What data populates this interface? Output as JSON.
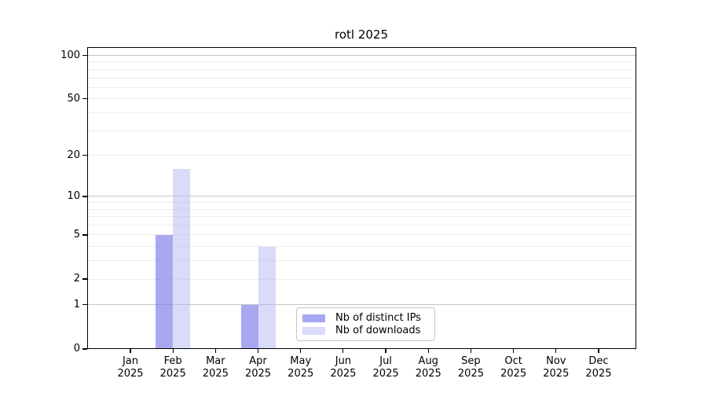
{
  "title": "rotl 2025",
  "chart_data": {
    "type": "bar",
    "title": "rotl 2025",
    "categories": [
      "Jan",
      "Feb",
      "Mar",
      "Apr",
      "May",
      "Jun",
      "Jul",
      "Aug",
      "Sep",
      "Oct",
      "Nov",
      "Dec"
    ],
    "x_year_line": "2025",
    "series": [
      {
        "name": "Nb of distinct IPs",
        "color": "rgba(127,127,233,0.68)",
        "values": [
          0,
          5,
          0,
          1,
          0,
          0,
          0,
          0,
          0,
          0,
          0,
          0
        ]
      },
      {
        "name": "Nb of downloads",
        "color": "rgba(181,181,243,0.5)",
        "values": [
          0,
          16,
          0,
          4,
          0,
          0,
          0,
          0,
          0,
          0,
          0,
          0
        ]
      }
    ],
    "yscale": "log1p (0 linear at baseline, log above)",
    "ylim": [
      0,
      115
    ],
    "yticks": [
      0,
      1,
      2,
      5,
      10,
      20,
      50,
      100
    ],
    "major_gridlines": [
      1,
      10,
      100
    ],
    "minor_gridlines": [
      2,
      3,
      4,
      5,
      6,
      7,
      8,
      9,
      20,
      30,
      40,
      50,
      60,
      70,
      80,
      90
    ],
    "legend_position": "lower center inside plot",
    "colors": {
      "grid_major": "#c6c6c6",
      "grid_minor": "#ededed",
      "axis": "#000000",
      "background": "#ffffff"
    }
  }
}
